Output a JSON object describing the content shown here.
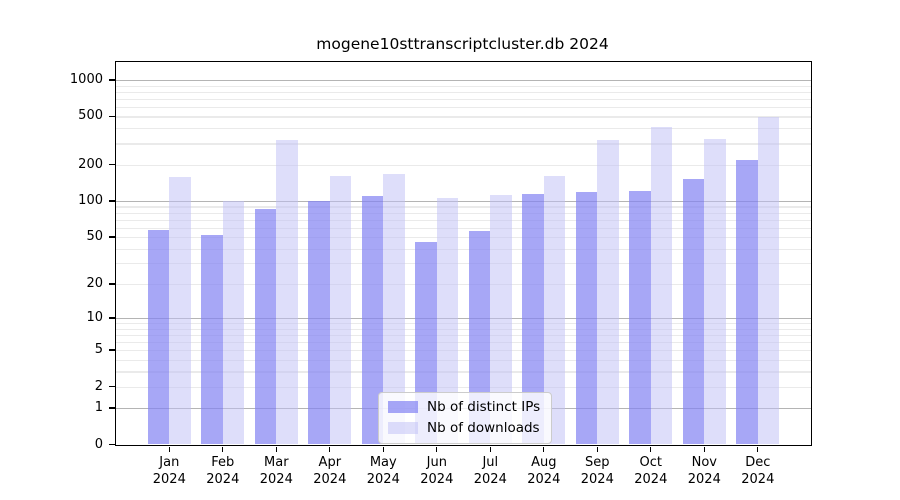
{
  "title": "mogene10sttranscriptcluster.db 2024",
  "chart_data": {
    "type": "bar",
    "title": "mogene10sttranscriptcluster.db 2024",
    "categories": [
      "Jan",
      "Feb",
      "Mar",
      "Apr",
      "May",
      "Jun",
      "Jul",
      "Aug",
      "Sep",
      "Oct",
      "Nov",
      "Dec"
    ],
    "year_label": "2024",
    "series": [
      {
        "name": "Nb of distinct IPs",
        "color": "#a7a7f6",
        "css_color": "rgba(130,130,242,0.7)",
        "values": [
          57,
          52,
          86,
          100,
          109,
          45,
          56,
          114,
          119,
          121,
          152,
          217
        ]
      },
      {
        "name": "Nb of downloads",
        "color": "#dedefa",
        "css_color": "rgba(190,190,245,0.5)",
        "values": [
          157,
          100,
          320,
          160,
          166,
          106,
          112,
          161,
          320,
          410,
          326,
          497
        ]
      }
    ],
    "xlabel": "",
    "ylabel": "",
    "yscale": "log1p",
    "ylim": [
      0,
      1400
    ],
    "yticks": [
      0,
      1,
      2,
      5,
      10,
      20,
      50,
      100,
      200,
      500,
      1000
    ],
    "grid": "horizontal; dark lines at 1, 10, 100, 1000; faint log-subdivision minors",
    "legend_position": "inside bottom-center"
  },
  "colors": {
    "background": "#ffffff",
    "axis": "#000000",
    "grid_major": "#b4b4b4",
    "grid_minor": "#eaeaea",
    "legend_border": "#cccccc"
  }
}
